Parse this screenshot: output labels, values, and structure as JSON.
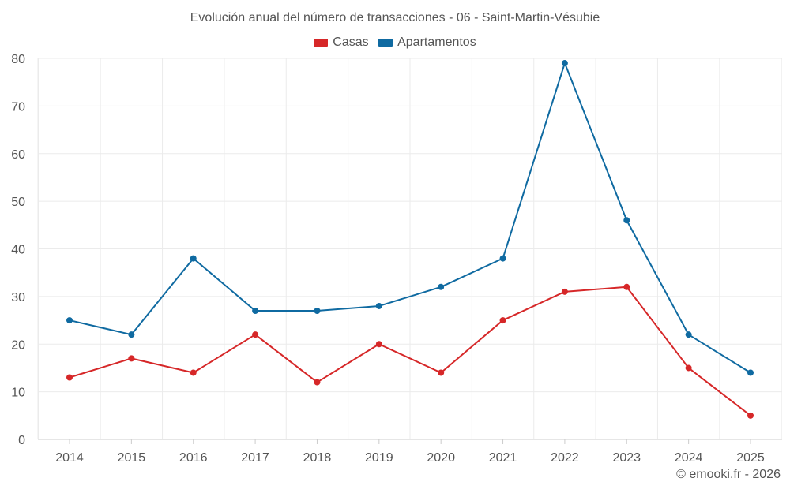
{
  "chart_data": {
    "type": "line",
    "title": "Evolución anual del número de transacciones - 06 - Saint-Martin-Vésubie",
    "x": [
      "2014",
      "2015",
      "2016",
      "2017",
      "2018",
      "2019",
      "2020",
      "2021",
      "2022",
      "2023",
      "2024",
      "2025"
    ],
    "series": [
      {
        "name": "Casas",
        "color": "#d62728",
        "values": [
          13,
          17,
          14,
          22,
          12,
          20,
          14,
          25,
          31,
          32,
          15,
          5
        ]
      },
      {
        "name": "Apartamentos",
        "color": "#0f6aa1",
        "values": [
          25,
          22,
          38,
          27,
          27,
          28,
          32,
          38,
          79,
          46,
          22,
          14
        ]
      }
    ],
    "ylim": [
      0,
      80
    ],
    "yticks": [
      0,
      10,
      20,
      30,
      40,
      50,
      60,
      70,
      80
    ],
    "xlabel": "",
    "ylabel": "",
    "grid": true,
    "legend_position": "top-center"
  },
  "legend": {
    "casas_label": "Casas",
    "apartamentos_label": "Apartamentos"
  },
  "footer": {
    "copyright": "© emooki.fr - 2026"
  }
}
